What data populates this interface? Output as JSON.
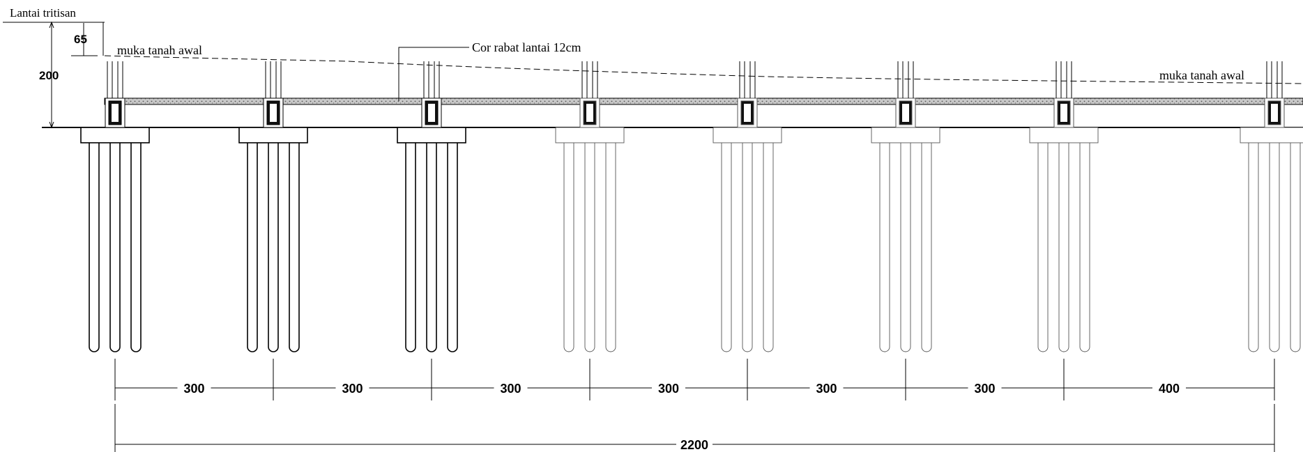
{
  "labels": {
    "floor_level": "Lantai tritisan",
    "original_ground_left": "muka tanah awal",
    "original_ground_right": "muka tanah awal",
    "floor_slab_note": "Cor rabat lantai 12cm"
  },
  "dimensions": {
    "vertical_total": "200",
    "vertical_offset": "65",
    "spans": [
      "300",
      "300",
      "300",
      "300",
      "300",
      "300",
      "400"
    ],
    "total": "2200"
  },
  "colors": {
    "line": "#000000",
    "line_faint": "#555555",
    "slab_fill": "#b8b8b8",
    "background": "#ffffff"
  }
}
